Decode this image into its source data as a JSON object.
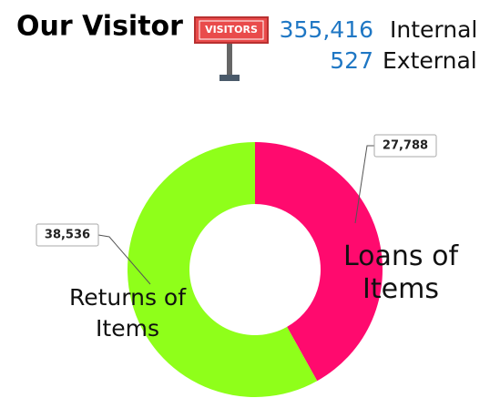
{
  "header": {
    "title": "Our Visitor",
    "sign": "VISITORS",
    "stats": [
      {
        "number": "355,416",
        "label": "Internal"
      },
      {
        "number": "527",
        "label": "External"
      }
    ]
  },
  "chart_data": {
    "type": "pie",
    "donut": true,
    "categories": [
      "Loans of Items",
      "Returns of Items"
    ],
    "values": [
      27788,
      38536
    ],
    "value_labels": [
      "27,788",
      "38,536"
    ],
    "colors": [
      "#ff0a6e",
      "#8fff1a"
    ]
  }
}
